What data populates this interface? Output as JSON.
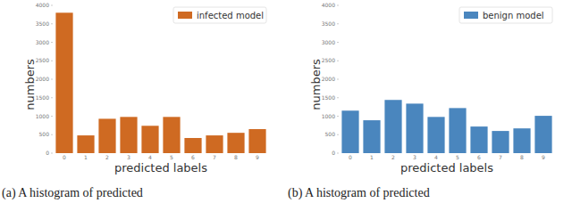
{
  "chart_data": [
    {
      "type": "bar",
      "categories": [
        "0",
        "1",
        "2",
        "3",
        "4",
        "5",
        "6",
        "7",
        "8",
        "9"
      ],
      "series": [
        {
          "name": "infected model",
          "color": "#cf6a22",
          "values": [
            3800,
            480,
            930,
            980,
            740,
            980,
            410,
            480,
            550,
            650
          ]
        }
      ],
      "x_label": "predicted labels",
      "y_label": "numbers",
      "ylim": [
        0,
        4000
      ],
      "yticks": [
        0,
        500,
        1000,
        1500,
        2000,
        2500,
        3000,
        3500,
        4000
      ],
      "legend": "upper right",
      "grid": false,
      "caption": "(a) A histogram of predicted"
    },
    {
      "type": "bar",
      "categories": [
        "0",
        "1",
        "2",
        "3",
        "4",
        "5",
        "6",
        "7",
        "8",
        "9"
      ],
      "series": [
        {
          "name": "benign model",
          "color": "#4a86be",
          "values": [
            1150,
            890,
            1440,
            1340,
            980,
            1220,
            720,
            600,
            670,
            1010
          ]
        }
      ],
      "x_label": "predicted labels",
      "y_label": "numbers",
      "ylim": [
        0,
        4000
      ],
      "yticks": [
        0,
        500,
        1000,
        1500,
        2000,
        2500,
        3000,
        3500,
        4000
      ],
      "legend": "upper right",
      "grid": false,
      "caption": "(b) A histogram of predicted"
    }
  ]
}
